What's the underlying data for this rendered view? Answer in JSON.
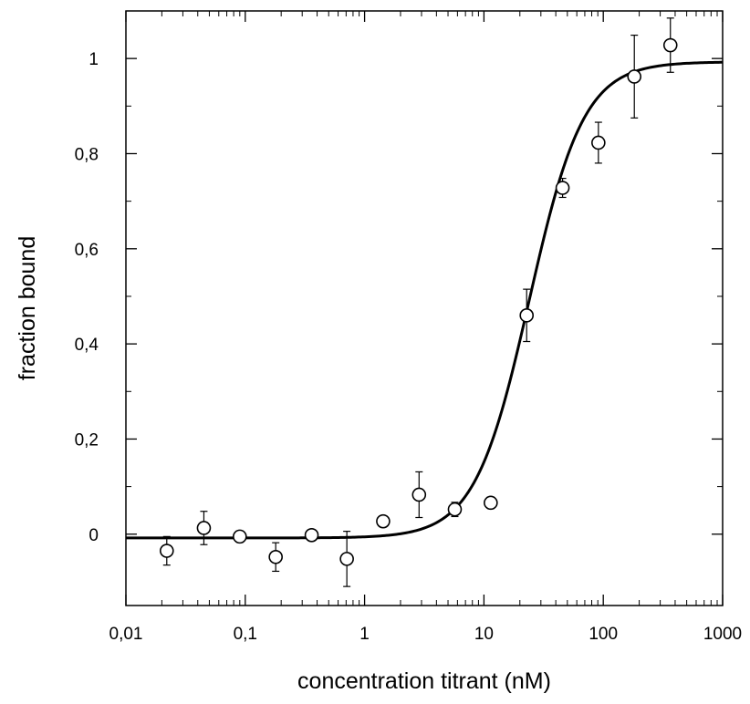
{
  "chart_data": {
    "type": "scatter",
    "title": "",
    "xlabel": "concentration titrant (nM)",
    "ylabel": "fraction bound",
    "xscale": "log",
    "xlim": [
      0.01,
      1000
    ],
    "ylim": [
      -0.15,
      1.1
    ],
    "grid": false,
    "legend": "none",
    "x_tick_labels": [
      "0,01",
      "0,1",
      "1",
      "10",
      "100",
      "1000"
    ],
    "x_tick_values": [
      0.01,
      0.1,
      1,
      10,
      100,
      1000
    ],
    "y_tick_labels": [
      "0",
      "0,2",
      "0,4",
      "0,6",
      "0,8",
      "1"
    ],
    "y_tick_values": [
      0,
      0.2,
      0.4,
      0.6,
      0.8,
      1
    ],
    "series": [
      {
        "type": "scatter",
        "marker": "open-circle",
        "x": [
          0.022,
          0.045,
          0.09,
          0.18,
          0.36,
          0.71,
          1.43,
          2.86,
          5.7,
          11.4,
          22.8,
          45.6,
          91,
          182,
          365
        ],
        "y": [
          -0.035,
          0.013,
          -0.005,
          -0.048,
          -0.002,
          -0.052,
          0.027,
          0.083,
          0.052,
          0.066,
          0.46,
          0.728,
          0.823,
          0.962,
          1.028
        ],
        "err": [
          0.03,
          0.035,
          0.012,
          0.03,
          0.008,
          0.058,
          0.01,
          0.048,
          0.015,
          0.012,
          0.055,
          0.02,
          0.043,
          0.087,
          0.057
        ]
      },
      {
        "type": "line",
        "model": "sigmoid fit",
        "bottom": -0.008,
        "top": 0.993,
        "ec50": 24,
        "hill": 1.9
      }
    ],
    "colors": {
      "marker": "#000000",
      "line": "#000000",
      "axis": "#000000"
    }
  }
}
